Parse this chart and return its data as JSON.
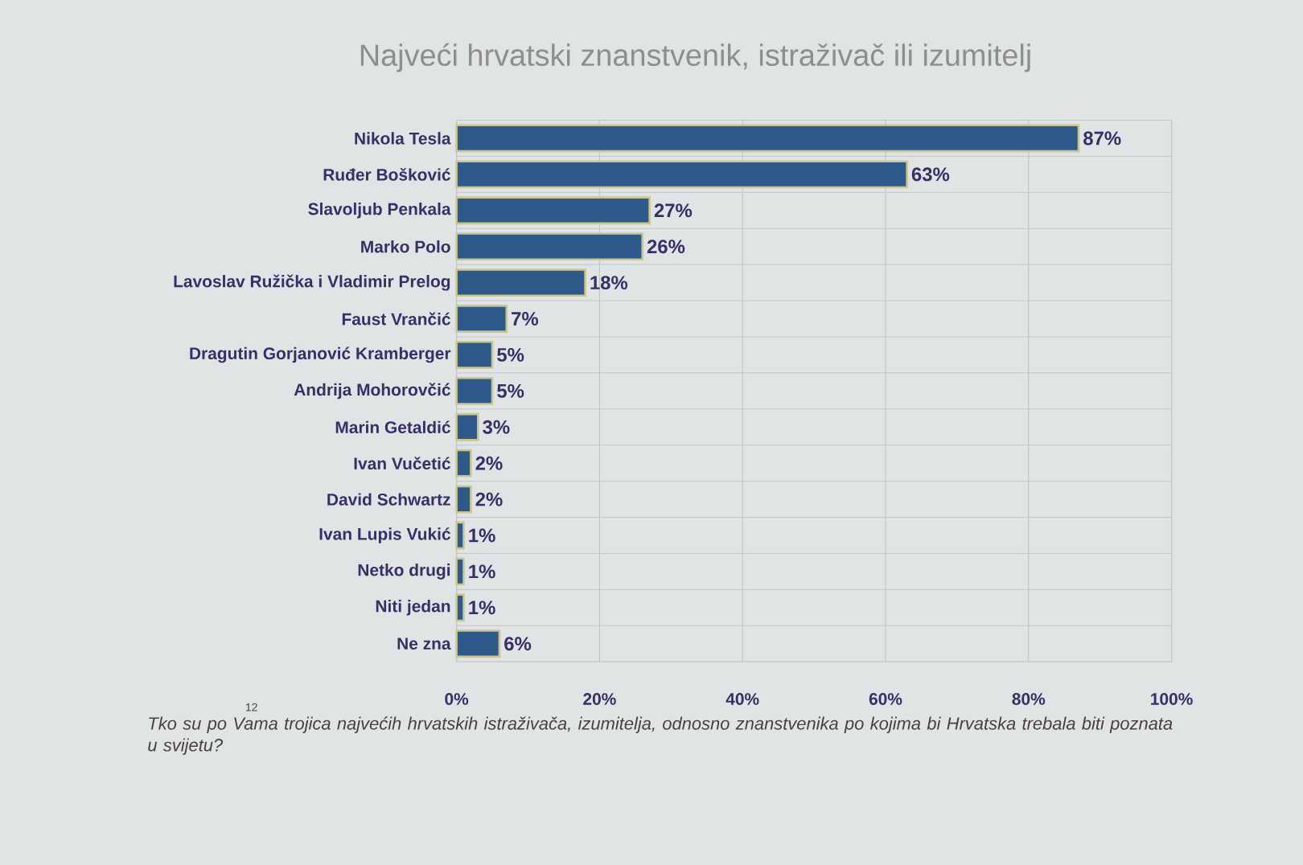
{
  "chart_data": {
    "type": "bar",
    "orientation": "horizontal",
    "title": "Najveći hrvatski znanstvenik, istraživač ili izumitelj",
    "categories": [
      "Nikola Tesla",
      "Ruđer Bošković",
      "Slavoljub Penkala",
      "Marko Polo",
      "Lavoslav Ružička i Vladimir Prelog",
      "Faust Vrančić",
      "Dragutin Gorjanović Kramberger",
      "Andrija Mohorovčić",
      "Marin Getaldić",
      "Ivan Vučetić",
      "David Schwartz",
      "Ivan Lupis Vukić",
      "Netko drugi",
      "Niti jedan",
      "Ne zna"
    ],
    "values": [
      87,
      63,
      27,
      26,
      18,
      7,
      5,
      5,
      3,
      2,
      2,
      1,
      1,
      1,
      6
    ],
    "value_labels": [
      "87%",
      "63%",
      "27%",
      "26%",
      "18%",
      "7%",
      "5%",
      "5%",
      "3%",
      "2%",
      "2%",
      "1%",
      "1%",
      "1%",
      "6%"
    ],
    "color": "#2d5a8b",
    "xlim": [
      0,
      100
    ],
    "xticks": [
      {
        "value": 0,
        "label": "0%"
      },
      {
        "value": 20,
        "label": "20%"
      },
      {
        "value": 40,
        "label": "40%"
      },
      {
        "value": 60,
        "label": "60%"
      },
      {
        "value": 80,
        "label": "80%"
      },
      {
        "value": 100,
        "label": "100%"
      }
    ],
    "grid": true,
    "annotations": [
      "Tko su po Vama trojica najvećih hrvatskih istraživača, izumitelja, odnosno znanstvenika po kojima bi Hrvatska trebala biti poznata u svijetu?",
      "12"
    ]
  }
}
